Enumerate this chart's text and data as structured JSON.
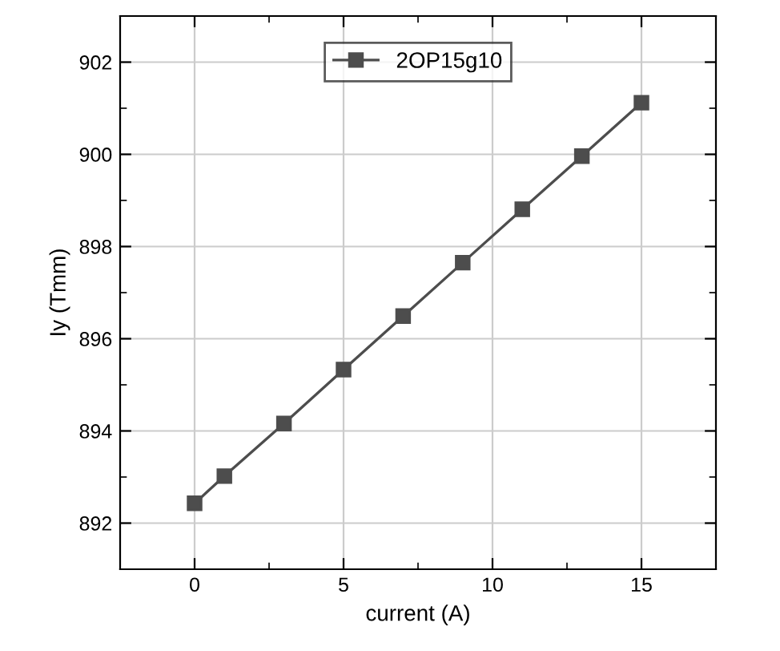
{
  "chart_data": {
    "type": "line",
    "xlabel": "current (A)",
    "ylabel": "Iy (Tmm)",
    "x": [
      0,
      1,
      3,
      5,
      7,
      9,
      11,
      13,
      15
    ],
    "series": [
      {
        "name": "2OP15g10",
        "color": "#4d4d4d",
        "values": [
          892.43,
          893.02,
          894.16,
          895.33,
          896.49,
          897.65,
          898.81,
          899.96,
          901.12
        ]
      }
    ],
    "xlim": [
      -2.5,
      17.5
    ],
    "ylim": [
      891,
      903
    ],
    "xticks": [
      0,
      5,
      10,
      15
    ],
    "yticks": [
      892,
      894,
      896,
      898,
      900,
      902
    ],
    "grid": true,
    "legend": "top",
    "marker": "square",
    "line_style": "solid"
  }
}
